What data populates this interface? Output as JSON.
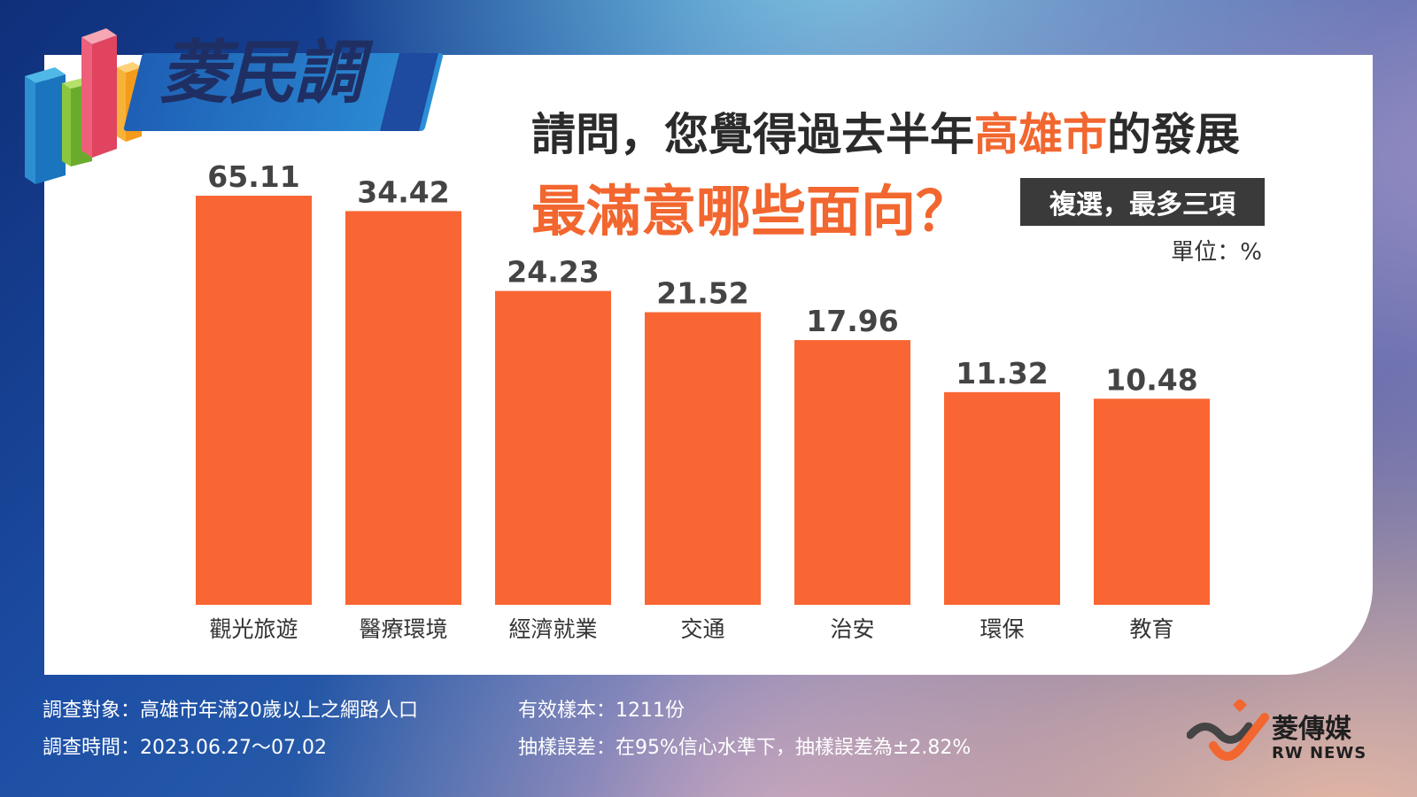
{
  "brand": {
    "program_logo": "菱民調",
    "media_name_cn": "菱傳媒",
    "media_name_en": "RW NEWS"
  },
  "title": {
    "line1_part1": "請問，您覺得過去半年",
    "line1_highlight": "高雄市",
    "line1_part2": "的發展",
    "line2": "最滿意哪些面向？"
  },
  "tag": "複選，最多三項",
  "unit": "單位：%",
  "colors": {
    "bar": "#f96633",
    "accent": "#f2662f",
    "label": "#444444"
  },
  "chart_data": {
    "type": "bar",
    "title": "請問，您覺得過去半年高雄市的發展最滿意哪些面向？",
    "categories": [
      "觀光旅遊",
      "醫療環境",
      "經濟就業",
      "交通",
      "治安",
      "環保",
      "教育"
    ],
    "values": [
      65.11,
      34.42,
      24.23,
      21.52,
      17.96,
      11.32,
      10.48
    ],
    "value_labels": [
      "65.11",
      "34.42",
      "24.23",
      "21.52",
      "17.96",
      "11.32",
      "10.48"
    ],
    "unit": "%",
    "grid": false,
    "legend": "none"
  },
  "footer": {
    "survey_target": "調查對象：高雄市年滿20歲以上之網路人口",
    "survey_period": "調查時間：2023.06.27～07.02",
    "sample_size": "有效樣本：1211份",
    "margin_of_error": "抽樣誤差：在95%信心水準下，抽樣誤差為±2.82%"
  }
}
